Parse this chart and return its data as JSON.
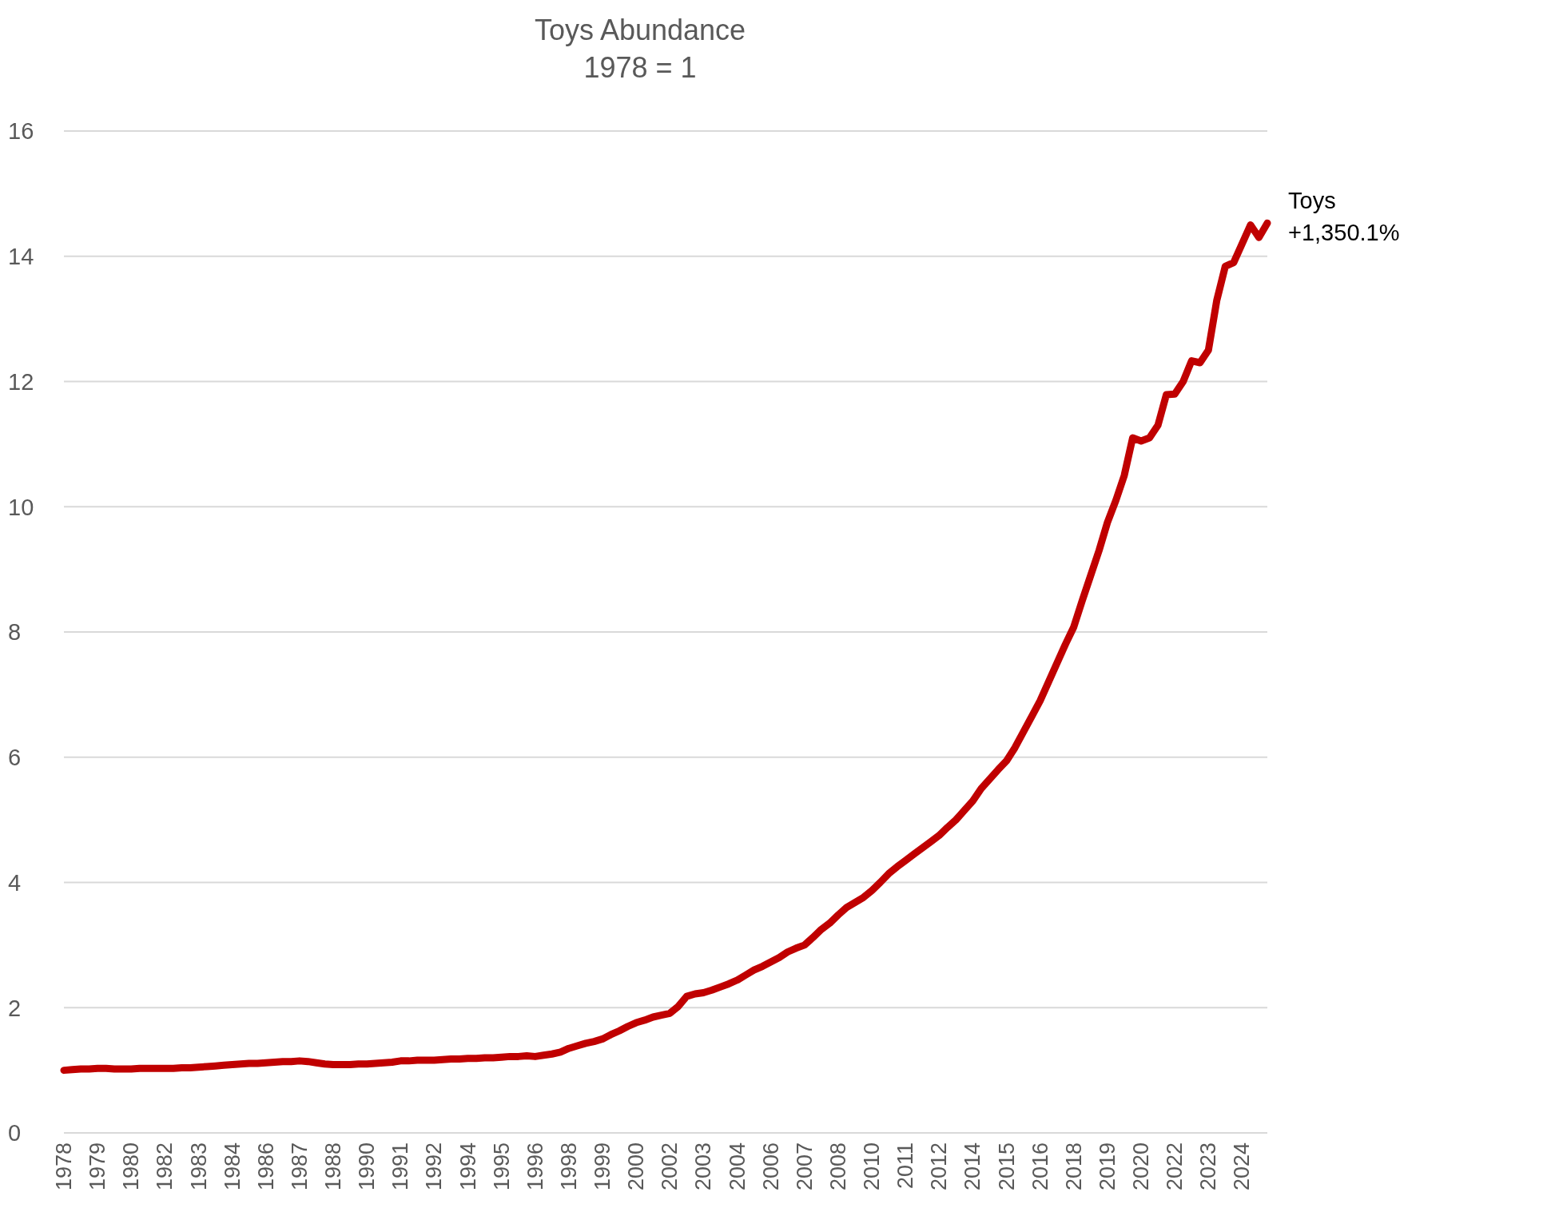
{
  "chart_data": {
    "type": "line",
    "title": "Toys Abundance",
    "subtitle": "1978 = 1",
    "categories": [
      "1978",
      null,
      null,
      null,
      "1979",
      null,
      null,
      null,
      "1980",
      null,
      null,
      null,
      "1982",
      null,
      null,
      null,
      "1983",
      null,
      null,
      null,
      "1984",
      null,
      null,
      null,
      "1986",
      null,
      null,
      null,
      "1987",
      null,
      null,
      null,
      "1988",
      null,
      null,
      null,
      "1990",
      null,
      null,
      null,
      "1991",
      null,
      null,
      null,
      "1992",
      null,
      null,
      null,
      "1994",
      null,
      null,
      null,
      "1995",
      null,
      null,
      null,
      "1996",
      null,
      null,
      null,
      "1998",
      null,
      null,
      null,
      "1999",
      null,
      null,
      null,
      "2000",
      null,
      null,
      null,
      "2002",
      null,
      null,
      null,
      "2003",
      null,
      null,
      null,
      "2004",
      null,
      null,
      null,
      "2006",
      null,
      null,
      null,
      "2007",
      null,
      null,
      null,
      "2008",
      null,
      null,
      null,
      "2010",
      null,
      null,
      null,
      "2011",
      null,
      null,
      null,
      "2012",
      null,
      null,
      null,
      "2014",
      null,
      null,
      null,
      "2015",
      null,
      null,
      null,
      "2016",
      null,
      null,
      null,
      "2018",
      null,
      null,
      null,
      "2019",
      null,
      null,
      null,
      "2020",
      null,
      null,
      null,
      "2022",
      null,
      null,
      null,
      "2023",
      null,
      null,
      null,
      "2024",
      null,
      null,
      null
    ],
    "series": [
      {
        "name": "Toys",
        "color": "#c00000",
        "values": [
          1.0,
          1.01,
          1.02,
          1.02,
          1.03,
          1.03,
          1.02,
          1.02,
          1.02,
          1.03,
          1.03,
          1.03,
          1.03,
          1.03,
          1.04,
          1.04,
          1.05,
          1.06,
          1.07,
          1.08,
          1.09,
          1.1,
          1.11,
          1.11,
          1.12,
          1.13,
          1.14,
          1.14,
          1.15,
          1.14,
          1.12,
          1.1,
          1.09,
          1.09,
          1.09,
          1.1,
          1.1,
          1.11,
          1.12,
          1.13,
          1.15,
          1.15,
          1.16,
          1.16,
          1.16,
          1.17,
          1.18,
          1.18,
          1.19,
          1.19,
          1.2,
          1.2,
          1.21,
          1.22,
          1.22,
          1.23,
          1.22,
          1.24,
          1.26,
          1.29,
          1.35,
          1.39,
          1.43,
          1.46,
          1.5,
          1.57,
          1.63,
          1.7,
          1.76,
          1.8,
          1.85,
          1.88,
          1.91,
          2.02,
          2.18,
          2.22,
          2.24,
          2.28,
          2.33,
          2.38,
          2.44,
          2.52,
          2.6,
          2.66,
          2.73,
          2.8,
          2.89,
          2.95,
          3.0,
          3.12,
          3.25,
          3.35,
          3.48,
          3.6,
          3.68,
          3.76,
          3.87,
          4.0,
          4.14,
          4.25,
          4.35,
          4.45,
          4.55,
          4.65,
          4.75,
          4.88,
          5.0,
          5.15,
          5.3,
          5.5,
          5.65,
          5.8,
          5.94,
          6.15,
          6.4,
          6.65,
          6.9,
          7.2,
          7.5,
          7.8,
          8.08,
          8.5,
          8.9,
          9.3,
          9.75,
          10.1,
          10.5,
          11.1,
          11.05,
          11.1,
          11.3,
          11.79,
          11.8,
          12.0,
          12.33,
          12.3,
          12.5,
          13.3,
          13.84,
          13.9,
          14.2,
          14.5,
          14.3,
          14.53
        ]
      }
    ],
    "annotations": [
      "+1,350.1%"
    ],
    "ylim": [
      0,
      16
    ],
    "yticks": [
      0,
      2,
      4,
      6,
      8,
      10,
      12,
      14,
      16
    ],
    "grid": "y",
    "marker": "none"
  }
}
